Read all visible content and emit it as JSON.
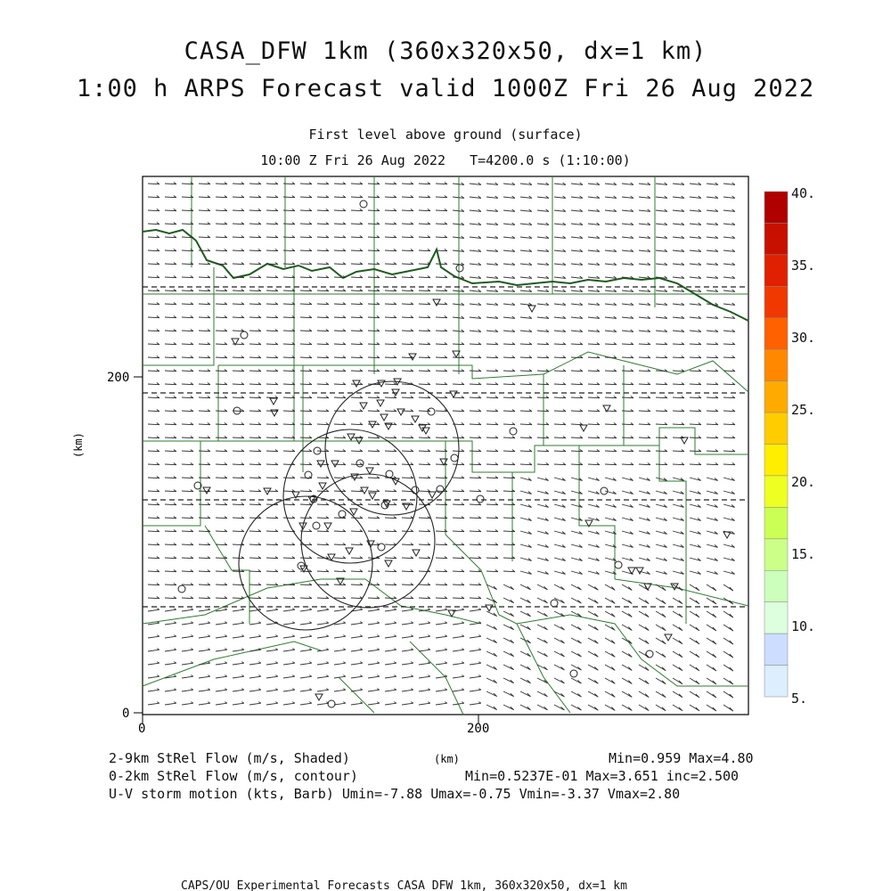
{
  "header": {
    "title_line1": "CASA_DFW 1km (360x320x50, dx=1 km)",
    "title_line2": "1:00 h ARPS Forecast valid 1000Z Fri 26 Aug 2022",
    "level": "First level above ground (surface)",
    "time_line": "10:00 Z Fri 26 Aug 2022   T=4200.0 s (1:10:00)"
  },
  "axes": {
    "y_label": "(km)",
    "x_label": "(km)",
    "x_ticks": [
      "0",
      "200"
    ],
    "y_ticks": [
      "0",
      "200"
    ]
  },
  "colorbar": {
    "labels": [
      "40.",
      "35.",
      "30.",
      "25.",
      "20.",
      "15.",
      "10.",
      "5."
    ],
    "colors": [
      "#b00000",
      "#c81000",
      "#e02000",
      "#f03800",
      "#ff6000",
      "#ff8800",
      "#ffaa00",
      "#ffcc00",
      "#ffee00",
      "#eeff22",
      "#ccff55",
      "#ccff88",
      "#ccffbb",
      "#ddffdd",
      "#ccddff",
      "#ddeeff"
    ]
  },
  "legend": {
    "line1_left": "2-9km StRel Flow (m/s, Shaded)",
    "line1_right": "Min=0.959 Max=4.80",
    "line2_left": "0-2km StRel Flow (m/s, contour)",
    "line2_right": "Min=0.5237E-01 Max=3.651 inc=2.500",
    "line3": "U-V storm motion (kts, Barb) Umin=-7.88 Umax=-0.75 Vmin=-3.37 Vmax=2.80"
  },
  "footer": "CAPS/OU Experimental Forecasts  CASA DFW 1km, 360x320x50, dx=1 km",
  "map_colors": {
    "county_lines": "#2e7d2e",
    "frame": "#000000"
  }
}
